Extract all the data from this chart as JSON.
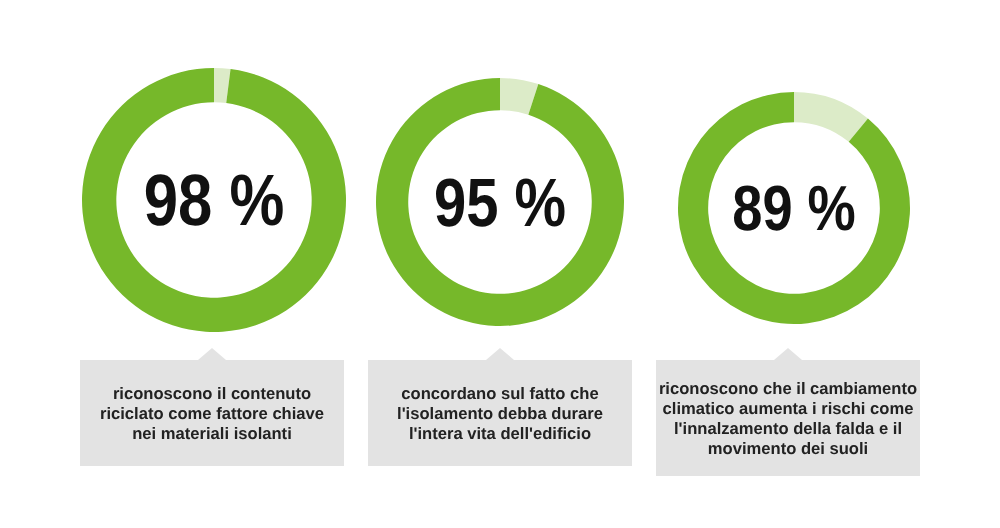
{
  "chart_data": [
    {
      "type": "donut",
      "categories": [
        null,
        null
      ],
      "values": [
        2,
        98
      ],
      "colors": [
        "#dcebc8",
        "#76b82a"
      ],
      "value_labels": [
        null,
        "98 %"
      ],
      "annotations": [
        "riconoscono il contenuto\nriciclato come fattore chiave\nnei materiali isolanti"
      ]
    },
    {
      "type": "donut",
      "categories": [
        null,
        null
      ],
      "values": [
        5,
        95
      ],
      "colors": [
        "#dcebc8",
        "#76b82a"
      ],
      "value_labels": [
        null,
        "95 %"
      ],
      "annotations": [
        "concordano sul fatto che\nl'isolamento debba durare\nl'intera vita dell'edificio"
      ]
    },
    {
      "type": "donut",
      "categories": [
        null,
        null
      ],
      "values": [
        11,
        89
      ],
      "colors": [
        "#dcebc8",
        "#76b82a"
      ],
      "value_labels": [
        null,
        "89 %"
      ],
      "annotations": [
        "riconoscono che il cambiamento\nclimatico aumenta i rischi come\nl'innalzamento della falda e il\nmovimento dei suoli"
      ]
    }
  ]
}
